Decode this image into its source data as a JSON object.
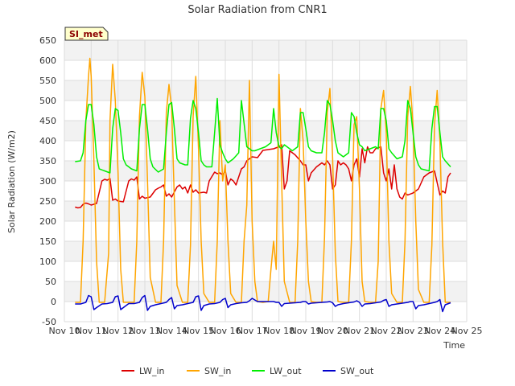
{
  "chart_data": {
    "type": "line",
    "title": "Solar Radiation from CNR1",
    "badge": "SI_met",
    "xlabel": "Time",
    "ylabel": "Solar Radiation (W/m2)",
    "xlim": [
      10,
      25
    ],
    "ylim": [
      -50,
      650
    ],
    "x_ticks": [
      {
        "value": 10,
        "label": "Nov 10"
      },
      {
        "value": 11,
        "label": "Nov 11"
      },
      {
        "value": 12,
        "label": "Nov 12"
      },
      {
        "value": 13,
        "label": "Nov 13"
      },
      {
        "value": 14,
        "label": "Nov 14"
      },
      {
        "value": 15,
        "label": "Nov 15"
      },
      {
        "value": 16,
        "label": "Nov 16"
      },
      {
        "value": 17,
        "label": "Nov 17"
      },
      {
        "value": 18,
        "label": "Nov 18"
      },
      {
        "value": 19,
        "label": "Nov 19"
      },
      {
        "value": 20,
        "label": "Nov 20"
      },
      {
        "value": 21,
        "label": "Nov 21"
      },
      {
        "value": 22,
        "label": "Nov 22"
      },
      {
        "value": 23,
        "label": "Nov 23"
      },
      {
        "value": 24,
        "label": "Nov 24"
      },
      {
        "value": 25,
        "label": "Nov 25"
      }
    ],
    "y_ticks": [
      -50,
      0,
      50,
      100,
      150,
      200,
      250,
      300,
      350,
      400,
      450,
      500,
      550,
      600,
      650
    ],
    "grid": true,
    "legend_position": "bottom",
    "series": [
      {
        "name": "LW_in",
        "color": "#dd0000",
        "x": [
          10.4,
          10.5,
          10.6,
          10.7,
          10.8,
          10.9,
          11.0,
          11.2,
          11.4,
          11.5,
          11.6,
          11.7,
          11.8,
          11.9,
          12.0,
          12.2,
          12.4,
          12.5,
          12.6,
          12.7,
          12.8,
          12.9,
          13.0,
          13.2,
          13.4,
          13.5,
          13.6,
          13.7,
          13.8,
          13.9,
          14.0,
          14.2,
          14.3,
          14.4,
          14.5,
          14.6,
          14.7,
          14.8,
          14.9,
          15.0,
          15.2,
          15.3,
          15.4,
          15.6,
          15.7,
          15.8,
          15.9,
          16.0,
          16.1,
          16.2,
          16.3,
          16.4,
          16.6,
          16.7,
          16.8,
          17.0,
          17.2,
          17.4,
          17.6,
          17.8,
          18.0,
          18.1,
          18.2,
          18.3,
          18.4,
          18.6,
          18.8,
          18.9,
          19.0,
          19.1,
          19.2,
          19.4,
          19.6,
          19.7,
          19.8,
          19.9,
          20.0,
          20.1,
          20.2,
          20.3,
          20.4,
          20.5,
          20.6,
          20.7,
          20.8,
          20.9,
          21.0,
          21.1,
          21.2,
          21.3,
          21.4,
          21.5,
          21.6,
          21.8,
          21.9,
          22.0,
          22.1,
          22.2,
          22.3,
          22.4,
          22.5,
          22.6,
          22.7,
          22.8,
          23.0,
          23.2,
          23.4,
          23.5,
          23.6,
          23.8,
          24.0,
          24.1,
          24.2,
          24.3,
          24.4
        ],
        "y": [
          235,
          233,
          234,
          242,
          245,
          243,
          240,
          244,
          300,
          304,
          302,
          306,
          252,
          255,
          250,
          248,
          300,
          305,
          302,
          310,
          255,
          262,
          257,
          260,
          278,
          282,
          285,
          290,
          262,
          268,
          260,
          285,
          290,
          280,
          285,
          270,
          290,
          272,
          278,
          270,
          272,
          270,
          300,
          322,
          318,
          320,
          315,
          325,
          290,
          305,
          300,
          290,
          330,
          335,
          350,
          360,
          358,
          376,
          378,
          380,
          385,
          390,
          280,
          300,
          375,
          365,
          350,
          340,
          340,
          300,
          320,
          335,
          345,
          340,
          350,
          340,
          280,
          290,
          350,
          340,
          345,
          340,
          330,
          300,
          340,
          355,
          310,
          380,
          345,
          385,
          370,
          370,
          380,
          385,
          320,
          300,
          330,
          280,
          340,
          280,
          260,
          255,
          270,
          265,
          270,
          280,
          310,
          315,
          320,
          325,
          265,
          275,
          270,
          310,
          320
        ]
      },
      {
        "name": "SW_in",
        "color": "#ffa500",
        "x": [
          10.4,
          10.6,
          10.7,
          10.8,
          10.9,
          10.95,
          11.0,
          11.1,
          11.2,
          11.3,
          11.4,
          11.5,
          11.65,
          11.7,
          11.8,
          11.9,
          12.0,
          12.1,
          12.2,
          12.4,
          12.6,
          12.7,
          12.8,
          12.9,
          13.0,
          13.1,
          13.2,
          13.4,
          13.6,
          13.7,
          13.8,
          13.9,
          14.0,
          14.1,
          14.2,
          14.4,
          14.6,
          14.7,
          14.8,
          14.9,
          15.0,
          15.1,
          15.2,
          15.4,
          15.6,
          15.7,
          15.8,
          15.9,
          16.0,
          16.1,
          16.2,
          16.4,
          16.6,
          16.7,
          16.8,
          16.9,
          17.0,
          17.1,
          17.2,
          17.4,
          17.6,
          17.7,
          17.8,
          17.9,
          18.0,
          18.1,
          18.2,
          18.4,
          18.6,
          18.7,
          18.8,
          18.9,
          19.0,
          19.1,
          19.2,
          19.4,
          19.6,
          19.7,
          19.8,
          19.9,
          20.0,
          20.1,
          20.2,
          20.4,
          20.6,
          20.7,
          20.8,
          20.9,
          21.0,
          21.1,
          21.2,
          21.4,
          21.6,
          21.7,
          21.8,
          21.9,
          22.0,
          22.1,
          22.2,
          22.4,
          22.6,
          22.7,
          22.8,
          22.9,
          23.0,
          23.1,
          23.2,
          23.4,
          23.6,
          23.7,
          23.8,
          23.9,
          24.0,
          24.1,
          24.2,
          24.4
        ],
        "y": [
          -2,
          -2,
          150,
          450,
          560,
          605,
          560,
          350,
          100,
          -2,
          -2,
          -2,
          120,
          450,
          590,
          500,
          320,
          80,
          -2,
          -2,
          -2,
          150,
          460,
          570,
          510,
          300,
          60,
          -2,
          -2,
          150,
          470,
          540,
          480,
          250,
          40,
          -2,
          -2,
          140,
          460,
          560,
          380,
          150,
          20,
          -2,
          -2,
          150,
          450,
          300,
          340,
          150,
          20,
          -2,
          -2,
          150,
          240,
          550,
          200,
          50,
          0,
          -2,
          0,
          80,
          150,
          80,
          565,
          300,
          50,
          -2,
          -2,
          150,
          480,
          400,
          200,
          50,
          0,
          -2,
          -2,
          160,
          470,
          530,
          360,
          120,
          0,
          -2,
          -2,
          150,
          440,
          460,
          280,
          50,
          0,
          -2,
          -2,
          100,
          480,
          525,
          420,
          150,
          20,
          -2,
          -2,
          150,
          460,
          535,
          440,
          200,
          30,
          -2,
          -2,
          140,
          440,
          525,
          400,
          150,
          -2,
          -2
        ]
      },
      {
        "name": "LW_out",
        "color": "#00ee00",
        "x": [
          10.4,
          10.6,
          10.7,
          10.8,
          10.9,
          11.0,
          11.1,
          11.2,
          11.3,
          11.5,
          11.7,
          11.8,
          11.9,
          12.0,
          12.1,
          12.2,
          12.3,
          12.5,
          12.7,
          12.8,
          12.9,
          13.0,
          13.1,
          13.2,
          13.3,
          13.5,
          13.7,
          13.8,
          13.9,
          14.0,
          14.1,
          14.2,
          14.3,
          14.5,
          14.6,
          14.7,
          14.8,
          14.9,
          15.0,
          15.1,
          15.2,
          15.3,
          15.5,
          15.6,
          15.7,
          15.8,
          15.9,
          16.0,
          16.1,
          16.3,
          16.5,
          16.6,
          16.8,
          16.9,
          17.0,
          17.1,
          17.3,
          17.5,
          17.7,
          17.8,
          17.9,
          18.0,
          18.1,
          18.2,
          18.3,
          18.5,
          18.7,
          18.8,
          18.9,
          19.0,
          19.1,
          19.2,
          19.4,
          19.6,
          19.7,
          19.8,
          19.9,
          20.0,
          20.1,
          20.2,
          20.4,
          20.6,
          20.7,
          20.8,
          20.9,
          21.0,
          21.1,
          21.2,
          21.4,
          21.6,
          21.7,
          21.8,
          21.9,
          22.0,
          22.1,
          22.2,
          22.4,
          22.6,
          22.7,
          22.8,
          22.9,
          23.0,
          23.1,
          23.2,
          23.3,
          23.6,
          23.7,
          23.8,
          23.9,
          24.0,
          24.1,
          24.2,
          24.4
        ],
        "y": [
          348,
          350,
          370,
          450,
          490,
          490,
          440,
          360,
          330,
          325,
          320,
          430,
          480,
          475,
          420,
          355,
          340,
          330,
          325,
          430,
          490,
          490,
          430,
          355,
          335,
          322,
          330,
          420,
          490,
          495,
          430,
          355,
          345,
          340,
          340,
          455,
          500,
          480,
          420,
          350,
          340,
          335,
          335,
          420,
          505,
          390,
          370,
          355,
          345,
          355,
          370,
          500,
          385,
          380,
          375,
          375,
          380,
          385,
          395,
          480,
          420,
          385,
          380,
          390,
          385,
          375,
          385,
          470,
          470,
          430,
          385,
          375,
          370,
          370,
          420,
          500,
          490,
          450,
          400,
          370,
          360,
          370,
          470,
          460,
          420,
          390,
          385,
          375,
          380,
          385,
          380,
          480,
          480,
          450,
          380,
          370,
          355,
          360,
          400,
          500,
          480,
          420,
          360,
          340,
          330,
          325,
          430,
          485,
          485,
          420,
          360,
          350,
          335
        ]
      },
      {
        "name": "SW_out",
        "color": "#0000cc",
        "x": [
          10.4,
          10.6,
          10.8,
          10.9,
          11.0,
          11.1,
          11.2,
          11.4,
          11.6,
          11.8,
          11.9,
          12.0,
          12.1,
          12.2,
          12.4,
          12.6,
          12.8,
          12.9,
          13.0,
          13.1,
          13.2,
          13.4,
          13.6,
          13.8,
          13.9,
          14.0,
          14.1,
          14.2,
          14.4,
          14.6,
          14.8,
          14.9,
          15.0,
          15.1,
          15.2,
          15.4,
          15.6,
          15.8,
          15.9,
          16.0,
          16.1,
          16.2,
          16.4,
          16.6,
          16.8,
          16.9,
          17.0,
          17.2,
          17.4,
          17.6,
          17.8,
          17.9,
          18.0,
          18.1,
          18.2,
          18.4,
          18.6,
          18.8,
          18.9,
          19.0,
          19.1,
          19.2,
          19.4,
          19.6,
          19.8,
          19.9,
          20.0,
          20.1,
          20.2,
          20.4,
          20.6,
          20.8,
          20.9,
          21.0,
          21.1,
          21.2,
          21.4,
          21.6,
          21.8,
          21.9,
          22.0,
          22.1,
          22.2,
          22.4,
          22.6,
          22.8,
          22.9,
          23.0,
          23.1,
          23.2,
          23.4,
          23.6,
          23.8,
          23.9,
          24.0,
          24.1,
          24.2,
          24.4
        ],
        "y": [
          -6,
          -6,
          -2,
          15,
          12,
          -20,
          -15,
          -6,
          -5,
          -2,
          12,
          14,
          -20,
          -15,
          -5,
          -5,
          -2,
          10,
          15,
          -22,
          -12,
          -8,
          -5,
          -2,
          5,
          10,
          -18,
          -10,
          -8,
          -5,
          -2,
          12,
          14,
          -22,
          -10,
          -6,
          -5,
          -2,
          5,
          8,
          -15,
          -8,
          -5,
          -3,
          -2,
          2,
          8,
          0,
          0,
          0,
          0,
          -2,
          -2,
          -12,
          -5,
          -4,
          -3,
          -2,
          0,
          0,
          -6,
          -4,
          -3,
          -2,
          -1,
          0,
          -3,
          -12,
          -8,
          -5,
          -3,
          -1,
          2,
          -2,
          -12,
          -6,
          -5,
          -3,
          -1,
          3,
          5,
          -12,
          -8,
          -6,
          -4,
          -2,
          0,
          0,
          -18,
          -10,
          -8,
          -5,
          -2,
          0,
          5,
          -25,
          -8,
          -3
        ]
      }
    ]
  }
}
